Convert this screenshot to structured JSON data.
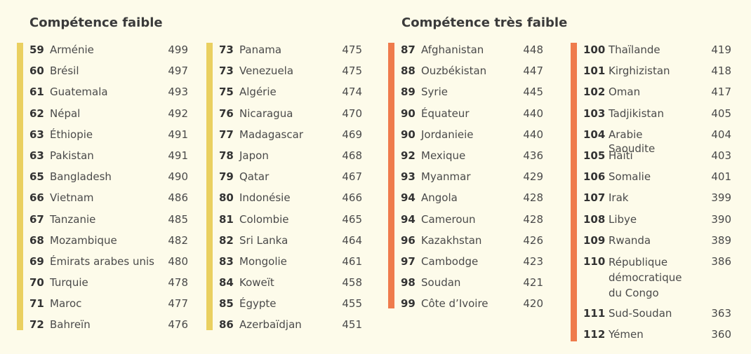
{
  "sections": {
    "low": {
      "title": "Compétence faible"
    },
    "very_low": {
      "title": "Compétence très faible"
    }
  },
  "colors": {
    "low_bar": "#ead060",
    "very_low_bar": "#ef7b4c",
    "background": "#fdfbea"
  },
  "columns": [
    {
      "rows": [
        {
          "rank": "59",
          "name": "Arménie",
          "score": "499"
        },
        {
          "rank": "60",
          "name": "Brésil",
          "score": "497"
        },
        {
          "rank": "61",
          "name": "Guatemala",
          "score": "493"
        },
        {
          "rank": "62",
          "name": "Népal",
          "score": "492"
        },
        {
          "rank": "63",
          "name": "Éthiopie",
          "score": "491"
        },
        {
          "rank": "63",
          "name": "Pakistan",
          "score": "491"
        },
        {
          "rank": "65",
          "name": "Bangladesh",
          "score": "490"
        },
        {
          "rank": "66",
          "name": "Vietnam",
          "score": "486"
        },
        {
          "rank": "67",
          "name": "Tanzanie",
          "score": "485"
        },
        {
          "rank": "68",
          "name": "Mozambique",
          "score": "482"
        },
        {
          "rank": "69",
          "name": "Émirats arabes unis",
          "score": "480"
        },
        {
          "rank": "70",
          "name": "Turquie",
          "score": "478"
        },
        {
          "rank": "71",
          "name": "Maroc",
          "score": "477"
        },
        {
          "rank": "72",
          "name": "Bahreïn",
          "score": "476"
        }
      ]
    },
    {
      "rows": [
        {
          "rank": "73",
          "name": "Panama",
          "score": "475"
        },
        {
          "rank": "73",
          "name": "Venezuela",
          "score": "475"
        },
        {
          "rank": "75",
          "name": "Algérie",
          "score": "474"
        },
        {
          "rank": "76",
          "name": "Nicaragua",
          "score": "470"
        },
        {
          "rank": "77",
          "name": "Madagascar",
          "score": "469"
        },
        {
          "rank": "78",
          "name": "Japon",
          "score": "468"
        },
        {
          "rank": "79",
          "name": "Qatar",
          "score": "467"
        },
        {
          "rank": "80",
          "name": "Indonésie",
          "score": "466"
        },
        {
          "rank": "81",
          "name": "Colombie",
          "score": "465"
        },
        {
          "rank": "82",
          "name": "Sri Lanka",
          "score": "464"
        },
        {
          "rank": "83",
          "name": "Mongolie",
          "score": "461"
        },
        {
          "rank": "84",
          "name": "Koweït",
          "score": "458"
        },
        {
          "rank": "85",
          "name": "Égypte",
          "score": "455"
        },
        {
          "rank": "86",
          "name": "Azerbaïdjan",
          "score": "451"
        }
      ]
    },
    {
      "rows": [
        {
          "rank": "87",
          "name": "Afghanistan",
          "score": "448"
        },
        {
          "rank": "88",
          "name": "Ouzbékistan",
          "score": "447"
        },
        {
          "rank": "89",
          "name": "Syrie",
          "score": "445"
        },
        {
          "rank": "90",
          "name": "Équateur",
          "score": "440"
        },
        {
          "rank": "90",
          "name": "Jordanieie",
          "score": "440"
        },
        {
          "rank": "92",
          "name": "Mexique",
          "score": "436"
        },
        {
          "rank": "93",
          "name": "Myanmar",
          "score": "429"
        },
        {
          "rank": "94",
          "name": "Angola",
          "score": "428"
        },
        {
          "rank": "94",
          "name": "Cameroun",
          "score": "428"
        },
        {
          "rank": "96",
          "name": "Kazakhstan",
          "score": "426"
        },
        {
          "rank": "97",
          "name": "Cambodge",
          "score": "423"
        },
        {
          "rank": "98",
          "name": "Soudan",
          "score": "421"
        },
        {
          "rank": "99",
          "name": "Côte d’Ivoire",
          "score": "420"
        }
      ]
    },
    {
      "rows": [
        {
          "rank": "100",
          "name": "Thaïlande",
          "score": "419"
        },
        {
          "rank": "101",
          "name": "Kirghizistan",
          "score": "418"
        },
        {
          "rank": "102",
          "name": "Oman",
          "score": "417"
        },
        {
          "rank": "103",
          "name": "Tadjikistan",
          "score": "405"
        },
        {
          "rank": "104",
          "name": "Arabie Saoudite",
          "score": "404"
        },
        {
          "rank": "105",
          "name": "Haïti",
          "score": "403"
        },
        {
          "rank": "106",
          "name": "Somalie",
          "score": "401"
        },
        {
          "rank": "107",
          "name": "Irak",
          "score": "399"
        },
        {
          "rank": "108",
          "name": "Libye",
          "score": "390"
        },
        {
          "rank": "109",
          "name": "Rwanda",
          "score": "389"
        },
        {
          "rank": "110",
          "name": "République démocratique du Congo",
          "score": "386"
        },
        {
          "rank": "111",
          "name": "Sud-Soudan",
          "score": "363"
        },
        {
          "rank": "112",
          "name": "Yémen",
          "score": "360"
        }
      ]
    }
  ]
}
